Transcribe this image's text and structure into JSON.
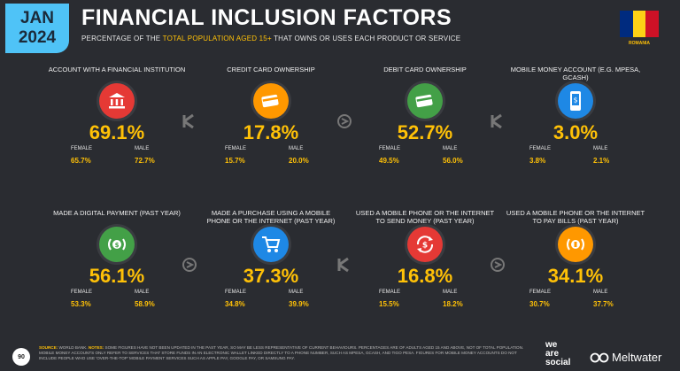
{
  "header": {
    "badge_month": "JAN",
    "badge_year": "2024",
    "title": "FINANCIAL INCLUSION FACTORS",
    "subtitle_pre": "PERCENTAGE OF THE ",
    "subtitle_highlight": "TOTAL POPULATION AGED 15+",
    "subtitle_post": " THAT OWNS OR USES EACH PRODUCT OR SERVICE",
    "country": "ROMANIA"
  },
  "colors": {
    "accent": "#ffc107",
    "badge": "#4fc3f7",
    "background": "#2a2c31",
    "red_icon": "#e53935",
    "orange_icon": "#ff9800",
    "green_icon": "#43a047",
    "blue_icon": "#1e88e5",
    "flag_blue": "#002b7f",
    "flag_yellow": "#fcd116",
    "flag_red": "#ce1126"
  },
  "gender_labels": {
    "female": "FEMALE",
    "male": "MALE"
  },
  "cards": [
    {
      "label": "ACCOUNT WITH A FINANCIAL INSTITUTION",
      "value": "69.1%",
      "female": "65.7%",
      "male": "72.7%",
      "icon": "bank-icon"
    },
    {
      "label": "CREDIT CARD OWNERSHIP",
      "value": "17.8%",
      "female": "15.7%",
      "male": "20.0%",
      "icon": "credit-card-icon"
    },
    {
      "label": "DEBIT CARD OWNERSHIP",
      "value": "52.7%",
      "female": "49.5%",
      "male": "56.0%",
      "icon": "debit-card-icon"
    },
    {
      "label": "MOBILE MONEY ACCOUNT (E.G. MPESA, GCASH)",
      "value": "3.0%",
      "female": "3.8%",
      "male": "2.1%",
      "icon": "mobile-money-icon"
    },
    {
      "label": "MADE A DIGITAL PAYMENT (PAST YEAR)",
      "value": "56.1%",
      "female": "53.3%",
      "male": "58.9%",
      "icon": "digital-payment-icon"
    },
    {
      "label": "MADE A PURCHASE USING A MOBILE PHONE OR THE INTERNET (PAST YEAR)",
      "value": "37.3%",
      "female": "34.8%",
      "male": "39.9%",
      "icon": "shopping-cart-icon"
    },
    {
      "label": "USED A MOBILE PHONE OR THE INTERNET TO SEND MONEY (PAST YEAR)",
      "value": "16.8%",
      "female": "15.5%",
      "male": "18.2%",
      "icon": "send-money-icon"
    },
    {
      "label": "USED A MOBILE PHONE OR THE INTERNET TO PAY BILLS (PAST YEAR)",
      "value": "34.1%",
      "female": "30.7%",
      "male": "37.7%",
      "icon": "pay-bills-icon"
    }
  ],
  "footer": {
    "source_label": "SOURCE:",
    "source_text": " WORLD BANK. ",
    "notes_label": "NOTES:",
    "notes_text": " SOME FIGURES HAVE NOT BEEN UPDATED IN THE PAST YEAR, SO MAY BE LESS REPRESENTATIVE OF CURRENT BEHAVIOURS. PERCENTAGES ARE OF ADULTS AGED 15 AND ABOVE, NOT OF TOTAL POPULATION. MOBILE MONEY ACCOUNTS ONLY REFER TO SERVICES THAT STORE FUNDS IN AN ELECTRONIC WALLET LINKED DIRECTLY TO A PHONE NUMBER, SUCH AS MPESA, GCASH, AND TIGO PESA. FIGURES FOR MOBILE MONEY ACCOUNTS DO NOT INCLUDE PEOPLE WHO USE 'OVER-THE-TOP' MOBILE PAYMENT SERVICES SUCH AS APPLE PAY, GOOGLE PAY, OR SAMSUNG PAY.",
    "page_number": "90"
  },
  "brands": {
    "we": "we",
    "are": "are",
    "social": "social",
    "meltwater": "Meltwater"
  }
}
